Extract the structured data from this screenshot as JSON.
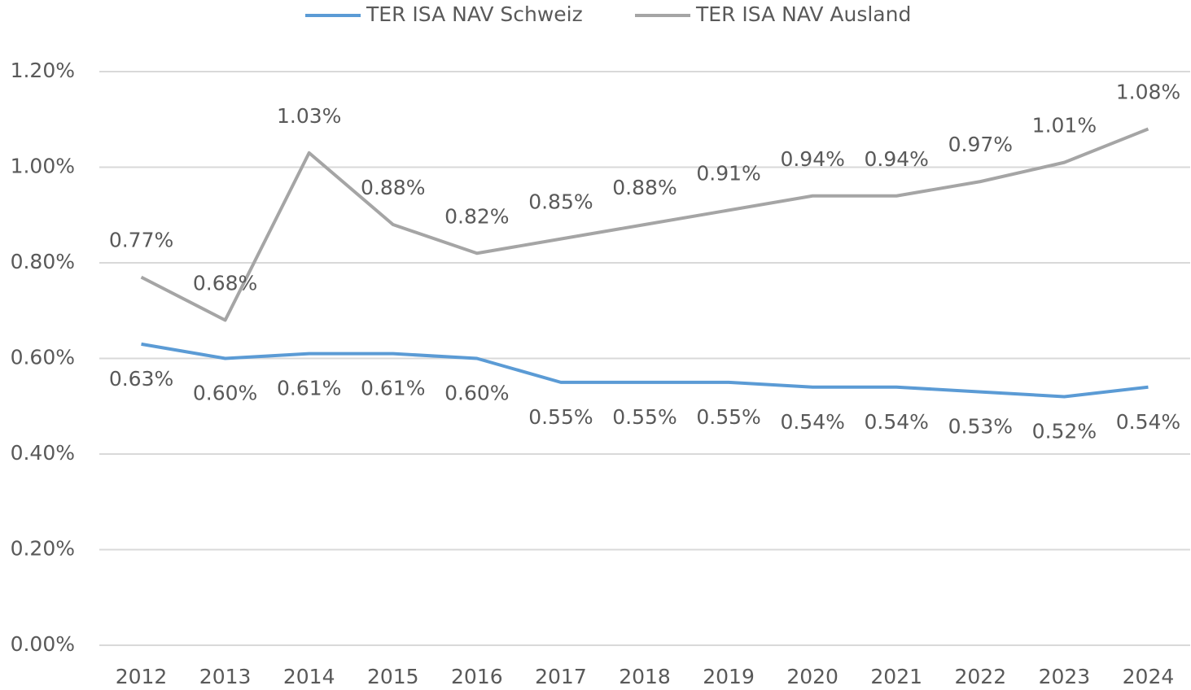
{
  "chart_data": {
    "type": "line",
    "categories": [
      "2012",
      "2013",
      "2014",
      "2015",
      "2016",
      "2017",
      "2018",
      "2019",
      "2020",
      "2021",
      "2022",
      "2023",
      "2024"
    ],
    "series": [
      {
        "name": "TER ISA NAV Schweiz",
        "color": "#5b9bd5",
        "values": [
          0.63,
          0.6,
          0.61,
          0.61,
          0.6,
          0.55,
          0.55,
          0.55,
          0.54,
          0.54,
          0.53,
          0.52,
          0.54
        ],
        "value_labels": [
          "0.63%",
          "0.60%",
          "0.61%",
          "0.61%",
          "0.60%",
          "0.55%",
          "0.55%",
          "0.55%",
          "0.54%",
          "0.54%",
          "0.53%",
          "0.52%",
          "0.54%"
        ]
      },
      {
        "name": "TER ISA NAV Ausland",
        "color": "#a5a5a5",
        "values": [
          0.77,
          0.68,
          1.03,
          0.88,
          0.82,
          0.85,
          0.88,
          0.91,
          0.94,
          0.94,
          0.97,
          1.01,
          1.08
        ],
        "value_labels": [
          "0.77%",
          "0.68%",
          "1.03%",
          "0.88%",
          "0.82%",
          "0.85%",
          "0.88%",
          "0.91%",
          "0.94%",
          "0.94%",
          "0.97%",
          "1.01%",
          "1.08%"
        ]
      }
    ],
    "ylim": [
      0,
      1.2
    ],
    "yticks": [
      {
        "value": 0,
        "label": "0.00%"
      },
      {
        "value": 0.2,
        "label": "0.20%"
      },
      {
        "value": 0.4,
        "label": "0.40%"
      },
      {
        "value": 0.6,
        "label": "0.60%"
      },
      {
        "value": 0.8,
        "label": "0.80%"
      },
      {
        "value": 1.0,
        "label": "1.00%"
      },
      {
        "value": 1.2,
        "label": "1.20%"
      }
    ],
    "grid": true,
    "legend": "top"
  }
}
